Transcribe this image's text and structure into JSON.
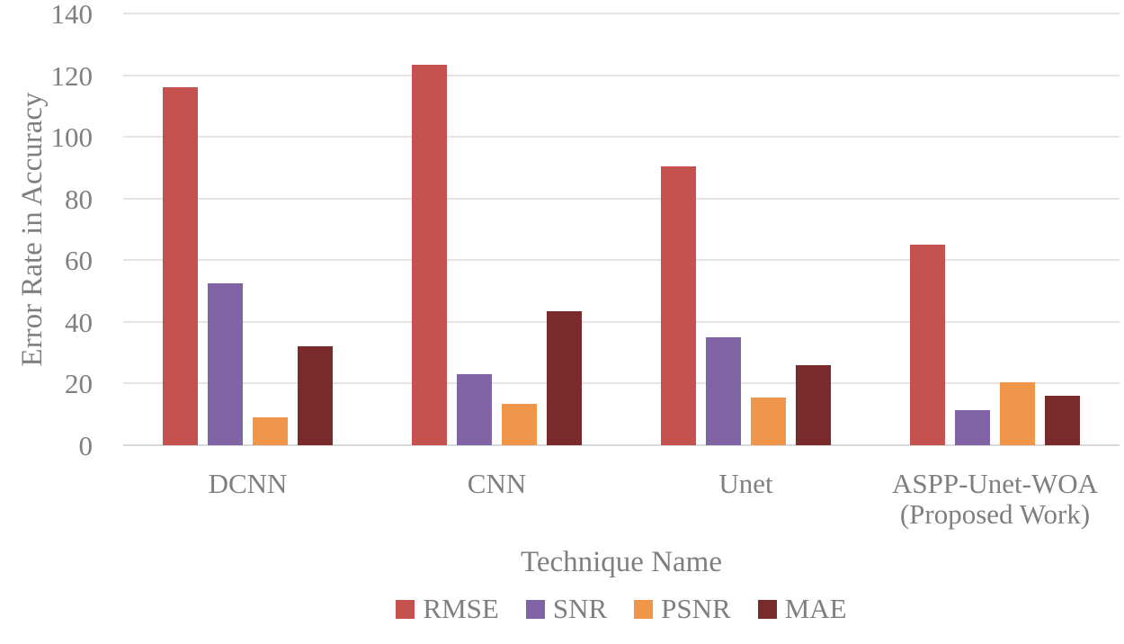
{
  "chart_data": {
    "type": "bar",
    "title": "",
    "xlabel": "Technique Name",
    "ylabel": "Error Rate in Accuracy",
    "categories": [
      [
        "DCNN"
      ],
      [
        "CNN"
      ],
      [
        "Unet"
      ],
      [
        "ASPP-Unet-WOA",
        "(Proposed Work)"
      ]
    ],
    "series": [
      {
        "name": "RMSE",
        "color": "#C4514E",
        "values": [
          116,
          123.5,
          90.5,
          65
        ]
      },
      {
        "name": "SNR",
        "color": "#7F63A5",
        "values": [
          52.5,
          23,
          35,
          11.5
        ]
      },
      {
        "name": "PSNR",
        "color": "#F0964B",
        "values": [
          9,
          13.5,
          15.5,
          20.5
        ]
      },
      {
        "name": "MAE",
        "color": "#7A2A2B",
        "values": [
          32,
          43.5,
          26,
          16
        ]
      }
    ],
    "ylim": [
      0,
      140
    ],
    "yticks": [
      0,
      20,
      40,
      60,
      80,
      100,
      120,
      140
    ],
    "grid": true,
    "legend_position": "bottom",
    "text_color": "#7F7F7F",
    "gridline_color": "#E4E4E4",
    "axis_line_color": "#D9D9D9",
    "background": "#FFFFFF"
  }
}
